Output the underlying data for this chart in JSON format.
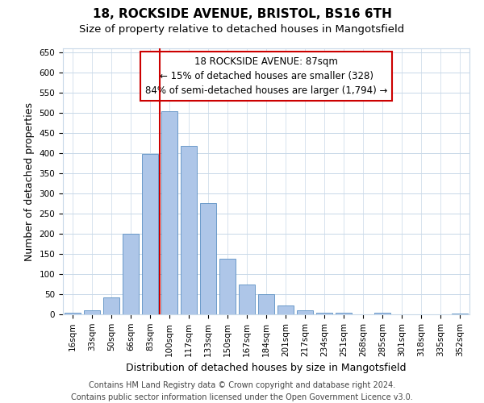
{
  "title1": "18, ROCKSIDE AVENUE, BRISTOL, BS16 6TH",
  "title2": "Size of property relative to detached houses in Mangotsfield",
  "xlabel": "Distribution of detached houses by size in Mangotsfield",
  "ylabel": "Number of detached properties",
  "categories": [
    "16sqm",
    "33sqm",
    "50sqm",
    "66sqm",
    "83sqm",
    "100sqm",
    "117sqm",
    "133sqm",
    "150sqm",
    "167sqm",
    "184sqm",
    "201sqm",
    "217sqm",
    "234sqm",
    "251sqm",
    "268sqm",
    "285sqm",
    "301sqm",
    "318sqm",
    "335sqm",
    "352sqm"
  ],
  "values": [
    5,
    10,
    43,
    200,
    398,
    505,
    418,
    277,
    138,
    75,
    50,
    23,
    10,
    5,
    5,
    0,
    5,
    0,
    0,
    0,
    3
  ],
  "bar_color": "#aec6e8",
  "bar_edge_color": "#5a8fc2",
  "vline_color": "#cc0000",
  "annotation_text": "18 ROCKSIDE AVENUE: 87sqm\n← 15% of detached houses are smaller (328)\n84% of semi-detached houses are larger (1,794) →",
  "annotation_box_color": "#ffffff",
  "annotation_box_edge_color": "#cc0000",
  "ylim": [
    0,
    660
  ],
  "yticks": [
    0,
    50,
    100,
    150,
    200,
    250,
    300,
    350,
    400,
    450,
    500,
    550,
    600,
    650
  ],
  "footer_line1": "Contains HM Land Registry data © Crown copyright and database right 2024.",
  "footer_line2": "Contains public sector information licensed under the Open Government Licence v3.0.",
  "background_color": "#ffffff",
  "grid_color": "#c8d8e8",
  "title1_fontsize": 11,
  "title2_fontsize": 9.5,
  "axis_label_fontsize": 9,
  "tick_fontsize": 7.5,
  "annotation_fontsize": 8.5,
  "footer_fontsize": 7
}
